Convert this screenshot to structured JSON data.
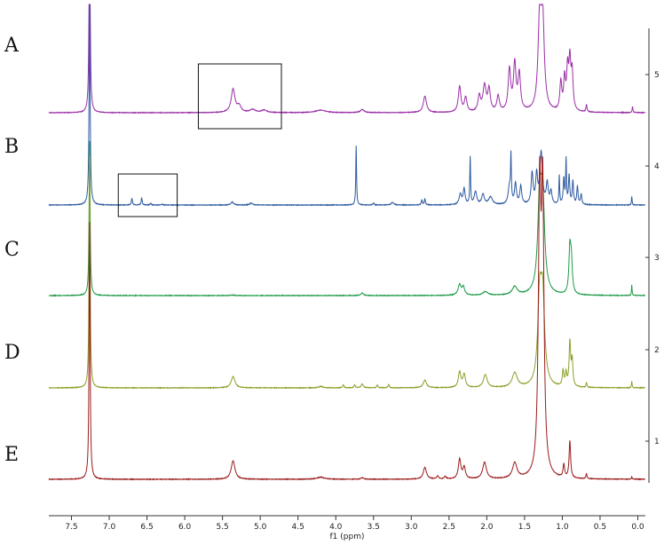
{
  "chart_data": {
    "type": "line",
    "title": "",
    "xlabel": "f1 (ppm)",
    "ylabel": "",
    "xlim": [
      7.8,
      -0.1
    ],
    "x_reversed": true,
    "x_ticks": [
      "7.5",
      "7.0",
      "6.5",
      "6.0",
      "5.5",
      "5.0",
      "4.5",
      "4.0",
      "3.5",
      "3.0",
      "2.5",
      "2.0",
      "1.5",
      "1.0",
      "0.5",
      "0.0"
    ],
    "right_axis_ticks": [
      "1",
      "2",
      "3",
      "4",
      "5"
    ],
    "grid": false,
    "legend": "none",
    "series": [
      {
        "name": "A",
        "color": "#9b2fa8",
        "peaks": [
          {
            "x": 7.26,
            "h": 4.5,
            "w": 0.008
          },
          {
            "x": 5.36,
            "h": 0.45,
            "w": 0.03
          },
          {
            "x": 5.28,
            "h": 0.12,
            "w": 0.03
          },
          {
            "x": 5.1,
            "h": 0.06,
            "w": 0.04
          },
          {
            "x": 4.95,
            "h": 0.05,
            "w": 0.04
          },
          {
            "x": 4.2,
            "h": 0.05,
            "w": 0.08
          },
          {
            "x": 3.65,
            "h": 0.06,
            "w": 0.03
          },
          {
            "x": 2.82,
            "h": 0.32,
            "w": 0.025
          },
          {
            "x": 2.36,
            "h": 0.5,
            "w": 0.02
          },
          {
            "x": 2.28,
            "h": 0.28,
            "w": 0.02
          },
          {
            "x": 2.1,
            "h": 0.3,
            "w": 0.02
          },
          {
            "x": 2.03,
            "h": 0.5,
            "w": 0.025
          },
          {
            "x": 1.97,
            "h": 0.42,
            "w": 0.02
          },
          {
            "x": 1.85,
            "h": 0.3,
            "w": 0.02
          },
          {
            "x": 1.7,
            "h": 0.8,
            "w": 0.02
          },
          {
            "x": 1.63,
            "h": 0.9,
            "w": 0.02
          },
          {
            "x": 1.57,
            "h": 0.7,
            "w": 0.02
          },
          {
            "x": 1.3,
            "h": 1.7,
            "w": 0.025
          },
          {
            "x": 1.26,
            "h": 1.7,
            "w": 0.025
          },
          {
            "x": 1.02,
            "h": 0.55,
            "w": 0.015
          },
          {
            "x": 0.97,
            "h": 0.6,
            "w": 0.015
          },
          {
            "x": 0.93,
            "h": 0.75,
            "w": 0.015
          },
          {
            "x": 0.9,
            "h": 0.9,
            "w": 0.015
          },
          {
            "x": 0.87,
            "h": 0.7,
            "w": 0.015
          },
          {
            "x": 0.68,
            "h": 0.14,
            "w": 0.008
          },
          {
            "x": 0.07,
            "h": 0.12,
            "w": 0.006
          }
        ]
      },
      {
        "name": "B",
        "color": "#2c5aa0",
        "peaks": [
          {
            "x": 7.26,
            "h": 4.0,
            "w": 0.008
          },
          {
            "x": 6.7,
            "h": 0.13,
            "w": 0.008
          },
          {
            "x": 6.57,
            "h": 0.14,
            "w": 0.008
          },
          {
            "x": 6.45,
            "h": 0.03,
            "w": 0.01
          },
          {
            "x": 6.3,
            "h": 0.02,
            "w": 0.01
          },
          {
            "x": 5.37,
            "h": 0.06,
            "w": 0.02
          },
          {
            "x": 5.12,
            "h": 0.04,
            "w": 0.02
          },
          {
            "x": 3.73,
            "h": 1.15,
            "w": 0.006
          },
          {
            "x": 3.5,
            "h": 0.04,
            "w": 0.01
          },
          {
            "x": 3.25,
            "h": 0.05,
            "w": 0.02
          },
          {
            "x": 2.86,
            "h": 0.1,
            "w": 0.008
          },
          {
            "x": 2.82,
            "h": 0.12,
            "w": 0.008
          },
          {
            "x": 2.35,
            "h": 0.2,
            "w": 0.02
          },
          {
            "x": 2.3,
            "h": 0.3,
            "w": 0.015
          },
          {
            "x": 2.22,
            "h": 0.92,
            "w": 0.006
          },
          {
            "x": 2.15,
            "h": 0.25,
            "w": 0.02
          },
          {
            "x": 2.05,
            "h": 0.2,
            "w": 0.02
          },
          {
            "x": 1.95,
            "h": 0.15,
            "w": 0.03
          },
          {
            "x": 1.7,
            "h": 0.35,
            "w": 0.02
          },
          {
            "x": 1.68,
            "h": 0.85,
            "w": 0.006
          },
          {
            "x": 1.62,
            "h": 0.4,
            "w": 0.015
          },
          {
            "x": 1.55,
            "h": 0.35,
            "w": 0.015
          },
          {
            "x": 1.4,
            "h": 0.6,
            "w": 0.015
          },
          {
            "x": 1.34,
            "h": 0.55,
            "w": 0.015
          },
          {
            "x": 1.28,
            "h": 1.0,
            "w": 0.02
          },
          {
            "x": 1.2,
            "h": 0.4,
            "w": 0.015
          },
          {
            "x": 1.15,
            "h": 0.25,
            "w": 0.015
          },
          {
            "x": 1.04,
            "h": 0.55,
            "w": 0.006
          },
          {
            "x": 0.98,
            "h": 0.5,
            "w": 0.01
          },
          {
            "x": 0.95,
            "h": 0.85,
            "w": 0.006
          },
          {
            "x": 0.91,
            "h": 0.55,
            "w": 0.01
          },
          {
            "x": 0.86,
            "h": 0.45,
            "w": 0.01
          },
          {
            "x": 0.8,
            "h": 0.35,
            "w": 0.01
          },
          {
            "x": 0.75,
            "h": 0.2,
            "w": 0.01
          },
          {
            "x": 0.08,
            "h": 0.17,
            "w": 0.005
          }
        ]
      },
      {
        "name": "C",
        "color": "#1f9a47",
        "peaks": [
          {
            "x": 7.26,
            "h": 3.0,
            "w": 0.008
          },
          {
            "x": 5.37,
            "h": 0.01,
            "w": 0.03
          },
          {
            "x": 3.65,
            "h": 0.05,
            "w": 0.02
          },
          {
            "x": 2.36,
            "h": 0.2,
            "w": 0.025
          },
          {
            "x": 2.31,
            "h": 0.15,
            "w": 0.02
          },
          {
            "x": 2.02,
            "h": 0.07,
            "w": 0.04
          },
          {
            "x": 1.63,
            "h": 0.16,
            "w": 0.04
          },
          {
            "x": 1.3,
            "h": 1.7,
            "w": 0.03
          },
          {
            "x": 1.26,
            "h": 1.7,
            "w": 0.03
          },
          {
            "x": 0.9,
            "h": 0.85,
            "w": 0.015
          },
          {
            "x": 0.88,
            "h": 0.6,
            "w": 0.015
          },
          {
            "x": 0.08,
            "h": 0.2,
            "w": 0.005
          }
        ]
      },
      {
        "name": "D",
        "color": "#8aa12a",
        "peaks": [
          {
            "x": 7.26,
            "h": 4.5,
            "w": 0.008
          },
          {
            "x": 5.36,
            "h": 0.22,
            "w": 0.03
          },
          {
            "x": 4.2,
            "h": 0.03,
            "w": 0.03
          },
          {
            "x": 3.9,
            "h": 0.06,
            "w": 0.01
          },
          {
            "x": 3.75,
            "h": 0.06,
            "w": 0.01
          },
          {
            "x": 3.65,
            "h": 0.08,
            "w": 0.015
          },
          {
            "x": 3.45,
            "h": 0.05,
            "w": 0.01
          },
          {
            "x": 3.3,
            "h": 0.06,
            "w": 0.01
          },
          {
            "x": 2.82,
            "h": 0.15,
            "w": 0.025
          },
          {
            "x": 2.36,
            "h": 0.3,
            "w": 0.02
          },
          {
            "x": 2.3,
            "h": 0.25,
            "w": 0.02
          },
          {
            "x": 2.02,
            "h": 0.25,
            "w": 0.03
          },
          {
            "x": 1.63,
            "h": 0.28,
            "w": 0.04
          },
          {
            "x": 1.3,
            "h": 1.6,
            "w": 0.03
          },
          {
            "x": 1.26,
            "h": 1.6,
            "w": 0.03
          },
          {
            "x": 0.99,
            "h": 0.3,
            "w": 0.012
          },
          {
            "x": 0.95,
            "h": 0.25,
            "w": 0.012
          },
          {
            "x": 0.9,
            "h": 0.85,
            "w": 0.012
          },
          {
            "x": 0.87,
            "h": 0.5,
            "w": 0.012
          },
          {
            "x": 0.68,
            "h": 0.09,
            "w": 0.008
          },
          {
            "x": 0.08,
            "h": 0.13,
            "w": 0.005
          }
        ]
      },
      {
        "name": "E",
        "color": "#9b1b1b",
        "peaks": [
          {
            "x": 7.26,
            "h": 5.0,
            "w": 0.008
          },
          {
            "x": 5.36,
            "h": 0.36,
            "w": 0.03
          },
          {
            "x": 4.2,
            "h": 0.04,
            "w": 0.06
          },
          {
            "x": 3.65,
            "h": 0.03,
            "w": 0.02
          },
          {
            "x": 2.82,
            "h": 0.23,
            "w": 0.025
          },
          {
            "x": 2.65,
            "h": 0.06,
            "w": 0.015
          },
          {
            "x": 2.55,
            "h": 0.05,
            "w": 0.015
          },
          {
            "x": 2.36,
            "h": 0.38,
            "w": 0.02
          },
          {
            "x": 2.3,
            "h": 0.22,
            "w": 0.02
          },
          {
            "x": 2.03,
            "h": 0.32,
            "w": 0.03
          },
          {
            "x": 1.63,
            "h": 0.3,
            "w": 0.035
          },
          {
            "x": 1.3,
            "h": 5.2,
            "w": 0.02
          },
          {
            "x": 1.26,
            "h": 5.2,
            "w": 0.02
          },
          {
            "x": 0.98,
            "h": 0.25,
            "w": 0.012
          },
          {
            "x": 0.9,
            "h": 0.72,
            "w": 0.012
          },
          {
            "x": 0.68,
            "h": 0.1,
            "w": 0.008
          },
          {
            "x": 0.08,
            "h": 0.05,
            "w": 0.005
          }
        ]
      }
    ],
    "annotations": [
      {
        "type": "box",
        "series": "A",
        "x_range": [
          5.82,
          4.72
        ],
        "note": "highlight region"
      },
      {
        "type": "box",
        "series": "B",
        "x_range": [
          6.88,
          6.1
        ],
        "note": "highlight region"
      }
    ],
    "panel_labels": [
      "A",
      "B",
      "C",
      "D",
      "E"
    ]
  }
}
